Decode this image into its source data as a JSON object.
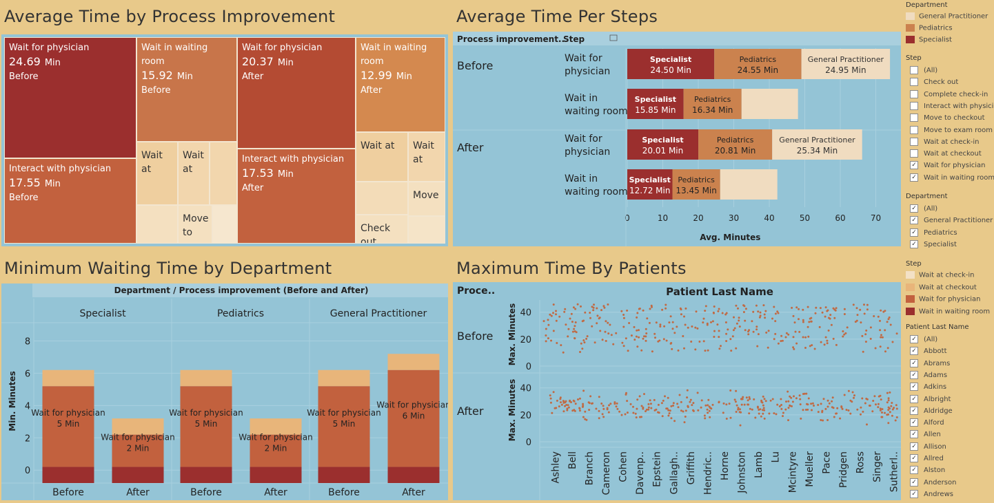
{
  "titles": {
    "treemap": "Average Time by Process Improvement",
    "steps": "Average Time Per Steps",
    "minwait": "Minimum Waiting Time by Department",
    "maxpat": "Maximum Time By Patients"
  },
  "colors": {
    "specialist": "#9b2f2e",
    "pediatrics": "#cb824e",
    "gp": "#f0dcc0",
    "wait_physician": "#c2613e",
    "wait_room": "#d98f57",
    "wait_checkin": "#f3e1c6",
    "wait_checkout": "#e8b57a",
    "panel": "#94c4d6",
    "dot": "#c06a44"
  },
  "treemap": {
    "cells": [
      {
        "label": "Wait for physician",
        "value": "24.69",
        "unit": "Min",
        "phase": "Before",
        "color": "#9b2f2e"
      },
      {
        "label": "Interact with physician",
        "value": "17.55",
        "unit": "Min",
        "phase": "Before",
        "color": "#c2613e"
      },
      {
        "label": "Wait in waiting room",
        "value": "15.92",
        "unit": "Min",
        "phase": "Before",
        "color": "#c8754a"
      },
      {
        "label": "Wait for physician",
        "value": "20.37",
        "unit": "Min",
        "phase": "After",
        "color": "#b44b33"
      },
      {
        "label": "Interact with physician",
        "value": "17.53",
        "unit": "Min",
        "phase": "After",
        "color": "#c2613e"
      },
      {
        "label": "Wait in waiting room",
        "value": "12.99",
        "unit": "Min",
        "phase": "After",
        "color": "#d4894f"
      },
      {
        "label": "Wait at",
        "value": "",
        "unit": "",
        "phase": "",
        "color": "#efcf9f"
      },
      {
        "label": "Wait at",
        "value": "",
        "unit": "",
        "phase": "",
        "color": "#f2d6ad"
      },
      {
        "label": "Move to",
        "value": "",
        "unit": "",
        "phase": "",
        "color": "#f4e0c0"
      },
      {
        "label": "Wait at",
        "value": "",
        "unit": "",
        "phase": "",
        "color": "#efcf9f"
      },
      {
        "label": "Wait at",
        "value": "",
        "unit": "",
        "phase": "",
        "color": "#f2d6ad"
      },
      {
        "label": "Move",
        "value": "",
        "unit": "",
        "phase": "",
        "color": "#f4e0c0"
      },
      {
        "label": "Check out",
        "value": "",
        "unit": "",
        "phase": "",
        "color": "#f4e0c0"
      }
    ]
  },
  "steps_chart": {
    "header_col1": "Process improvement..",
    "header_col2": "Step",
    "groups": [
      "Before",
      "After"
    ],
    "rows": [
      {
        "group": "Before",
        "step": [
          "Wait for",
          "physician"
        ],
        "segments": [
          {
            "dept": "Specialist",
            "value": 24.5,
            "label": "24.50 Min"
          },
          {
            "dept": "Pediatrics",
            "value": 24.55,
            "label": "24.55 Min"
          },
          {
            "dept": "General Practitioner",
            "value": 24.95,
            "label": "24.95 Min"
          }
        ]
      },
      {
        "group": "Before",
        "step": [
          "Wait in",
          "waiting room"
        ],
        "segments": [
          {
            "dept": "Specialist",
            "value": 15.85,
            "label": "15.85 Min"
          },
          {
            "dept": "Pediatrics",
            "value": 16.34,
            "label": "16.34 Min"
          },
          {
            "dept": "",
            "value": 15.9,
            "label": ""
          }
        ]
      },
      {
        "group": "After",
        "step": [
          "Wait for",
          "physician"
        ],
        "segments": [
          {
            "dept": "Specialist",
            "value": 20.01,
            "label": "20.01 Min"
          },
          {
            "dept": "Pediatrics",
            "value": 20.81,
            "label": "20.81 Min"
          },
          {
            "dept": "General Practitioner",
            "value": 25.34,
            "label": "25.34 Min"
          }
        ]
      },
      {
        "group": "After",
        "step": [
          "Wait in",
          "waiting room"
        ],
        "segments": [
          {
            "dept": "Specialist",
            "value": 12.72,
            "label": "12.72 Min"
          },
          {
            "dept": "Pediatrics",
            "value": 13.45,
            "label": "13.45 Min"
          },
          {
            "dept": "",
            "value": 16.1,
            "label": ""
          }
        ]
      }
    ],
    "x_ticks": [
      0,
      10,
      20,
      30,
      40,
      50,
      60,
      70
    ],
    "xlabel": "Avg. Minutes"
  },
  "chart_data": [
    {
      "type": "bar",
      "title": "Average Time Per Steps",
      "xlabel": "Avg. Minutes",
      "xlim": [
        0,
        75
      ],
      "categories": [
        "Before / Wait for physician",
        "Before / Wait in waiting room",
        "After / Wait for physician",
        "After / Wait in waiting room"
      ],
      "series": [
        {
          "name": "Specialist",
          "values": [
            24.5,
            15.85,
            20.01,
            12.72
          ]
        },
        {
          "name": "Pediatrics",
          "values": [
            24.55,
            16.34,
            20.81,
            13.45
          ]
        },
        {
          "name": "General Practitioner",
          "values": [
            24.95,
            15.9,
            25.34,
            16.1
          ]
        }
      ]
    },
    {
      "type": "bar",
      "title": "Minimum Waiting Time by Department",
      "header": "Department / Process improvement (Before and After)",
      "ylabel": "Min. Minutes",
      "ylim": [
        -0.8,
        9
      ],
      "y_ticks": [
        0,
        2,
        4,
        6,
        8
      ],
      "departments": [
        "Specialist",
        "Pediatrics",
        "General Practitioner"
      ],
      "categories": [
        "Before",
        "After"
      ],
      "bars": [
        {
          "dept": "Specialist",
          "phase": "Before",
          "stack": [
            1,
            5,
            1
          ],
          "label": [
            "Wait for physician",
            "5 Min"
          ]
        },
        {
          "dept": "Specialist",
          "phase": "After",
          "stack": [
            1,
            2,
            1
          ],
          "label": [
            "Wait for physician",
            "2 Min"
          ]
        },
        {
          "dept": "Pediatrics",
          "phase": "Before",
          "stack": [
            1,
            5,
            1
          ],
          "label": [
            "Wait for physician",
            "5 Min"
          ]
        },
        {
          "dept": "Pediatrics",
          "phase": "After",
          "stack": [
            1,
            2,
            1
          ],
          "label": [
            "Wait for physician",
            "2 Min"
          ]
        },
        {
          "dept": "General Practitioner",
          "phase": "Before",
          "stack": [
            1,
            5,
            1
          ],
          "label": [
            "Wait for physician",
            "5 Min"
          ]
        },
        {
          "dept": "General Practitioner",
          "phase": "After",
          "stack": [
            1,
            6,
            1
          ],
          "label": [
            "Wait for physician",
            "6 Min"
          ]
        }
      ]
    },
    {
      "type": "scatter",
      "title": "Maximum Time By Patients",
      "header": "Patient Last Name",
      "row_header": "Proce..",
      "rows": [
        "Before",
        "After"
      ],
      "ylabel": "Max. Minutes",
      "ylim": [
        0,
        47
      ],
      "y_ticks": [
        0,
        20,
        40
      ],
      "x_labels": [
        "Ashley",
        "Bell",
        "Branch",
        "Cameron",
        "Cohen",
        "Davenp..",
        "Epstein",
        "Gallagh..",
        "Griffith",
        "Hendric..",
        "Horne",
        "Johnston",
        "Lamb",
        "Lu",
        "Mcintyre",
        "Mueller",
        "Pace",
        "Pridgen",
        "Ross",
        "Singer",
        "Sutherl.."
      ],
      "points_per_row": 340,
      "before_range": [
        10,
        46
      ],
      "after_range": [
        10,
        43
      ]
    }
  ],
  "legends": {
    "department_color": {
      "title": "Department",
      "items": [
        {
          "label": "General Practitioner",
          "color": "#f0dcc0"
        },
        {
          "label": "Pediatrics",
          "color": "#cb824e"
        },
        {
          "label": "Specialist",
          "color": "#9b2f2e"
        }
      ]
    },
    "step_filter": {
      "title": "Step",
      "items": [
        {
          "label": "(All)",
          "checked": false
        },
        {
          "label": "Check out",
          "checked": false
        },
        {
          "label": "Complete check-in",
          "checked": false
        },
        {
          "label": "Interact with physici..",
          "checked": false
        },
        {
          "label": "Move to checkout",
          "checked": false
        },
        {
          "label": "Move to exam room",
          "checked": false
        },
        {
          "label": "Wait at check-in",
          "checked": false
        },
        {
          "label": "Wait at checkout",
          "checked": false
        },
        {
          "label": "Wait for physician",
          "checked": true
        },
        {
          "label": "Wait in waiting room",
          "checked": true
        }
      ]
    },
    "department_filter": {
      "title": "Department",
      "items": [
        {
          "label": "(All)",
          "checked": true
        },
        {
          "label": "General Practitioner",
          "checked": true
        },
        {
          "label": "Pediatrics",
          "checked": true
        },
        {
          "label": "Specialist",
          "checked": true
        }
      ]
    },
    "step_color": {
      "title": "Step",
      "items": [
        {
          "label": "Wait at check-in",
          "color": "#f3e1c6"
        },
        {
          "label": "Wait at checkout",
          "color": "#e8b57a"
        },
        {
          "label": "Wait for physician",
          "color": "#c2613e"
        },
        {
          "label": "Wait in waiting room",
          "color": "#9b2f2e"
        }
      ]
    },
    "patient_filter": {
      "title": "Patient Last Name",
      "items": [
        {
          "label": "(All)",
          "checked": true
        },
        {
          "label": "Abbott",
          "checked": true
        },
        {
          "label": "Abrams",
          "checked": true
        },
        {
          "label": "Adams",
          "checked": true
        },
        {
          "label": "Adkins",
          "checked": true
        },
        {
          "label": "Albright",
          "checked": true
        },
        {
          "label": "Aldridge",
          "checked": true
        },
        {
          "label": "Alford",
          "checked": true
        },
        {
          "label": "Allen",
          "checked": true
        },
        {
          "label": "Allison",
          "checked": true
        },
        {
          "label": "Allred",
          "checked": true
        },
        {
          "label": "Alston",
          "checked": true
        },
        {
          "label": "Anderson",
          "checked": true
        },
        {
          "label": "Andrews",
          "checked": true
        }
      ]
    }
  }
}
